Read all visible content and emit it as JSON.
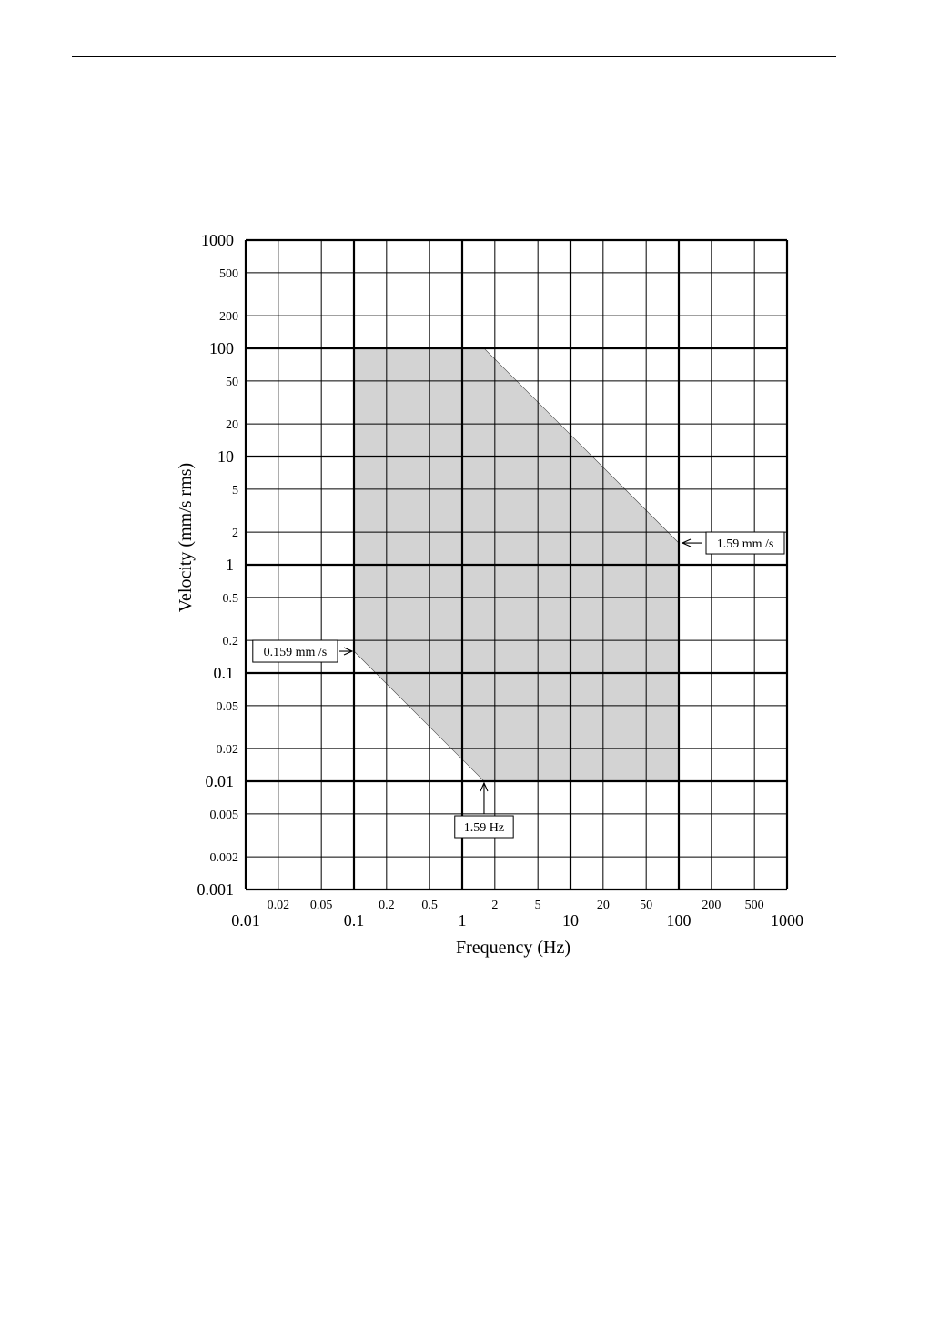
{
  "chart_data": {
    "type": "area",
    "x_scale": "log",
    "y_scale": "log",
    "xlim": [
      0.01,
      1000
    ],
    "ylim": [
      0.001,
      1000
    ],
    "xlabel": "Frequency (Hz)",
    "ylabel": "Velocity (mm/s rms)",
    "grid": true,
    "x_major_ticks": [
      {
        "value": 0.01,
        "label": "0.01"
      },
      {
        "value": 0.1,
        "label": "0.1"
      },
      {
        "value": 1,
        "label": "1"
      },
      {
        "value": 10,
        "label": "10"
      },
      {
        "value": 100,
        "label": "100"
      },
      {
        "value": 1000,
        "label": "1000"
      }
    ],
    "x_minor_ticks": [
      {
        "value": 0.02,
        "label": "0.02"
      },
      {
        "value": 0.05,
        "label": "0.05"
      },
      {
        "value": 0.2,
        "label": "0.2"
      },
      {
        "value": 0.5,
        "label": "0.5"
      },
      {
        "value": 2,
        "label": "2"
      },
      {
        "value": 5,
        "label": "5"
      },
      {
        "value": 20,
        "label": "20"
      },
      {
        "value": 50,
        "label": "50"
      },
      {
        "value": 200,
        "label": "200"
      },
      {
        "value": 500,
        "label": "500"
      }
    ],
    "y_major_ticks": [
      {
        "value": 0.001,
        "label": "0.001"
      },
      {
        "value": 0.01,
        "label": "0.01"
      },
      {
        "value": 0.1,
        "label": "0.1"
      },
      {
        "value": 1,
        "label": "1"
      },
      {
        "value": 10,
        "label": "10"
      },
      {
        "value": 100,
        "label": "100"
      },
      {
        "value": 1000,
        "label": "1000"
      }
    ],
    "y_minor_ticks": [
      {
        "value": 0.002,
        "label": "0.002"
      },
      {
        "value": 0.005,
        "label": "0.005"
      },
      {
        "value": 0.02,
        "label": "0.02"
      },
      {
        "value": 0.05,
        "label": "0.05"
      },
      {
        "value": 0.2,
        "label": "0.2"
      },
      {
        "value": 0.5,
        "label": "0.5"
      },
      {
        "value": 2,
        "label": "2"
      },
      {
        "value": 5,
        "label": "5"
      },
      {
        "value": 20,
        "label": "20"
      },
      {
        "value": 50,
        "label": "50"
      },
      {
        "value": 200,
        "label": "200"
      },
      {
        "value": 500,
        "label": "500"
      }
    ],
    "region": {
      "fill": "#d3d3d3",
      "vertices": [
        [
          0.1,
          100
        ],
        [
          1.59,
          100
        ],
        [
          100,
          1.59
        ],
        [
          100,
          0.01
        ],
        [
          1.59,
          0.01
        ],
        [
          0.1,
          0.159
        ]
      ]
    },
    "annotations": [
      {
        "text": "1.59 mm /s",
        "x": 100,
        "y": 1.59,
        "side": "right"
      },
      {
        "text": "0.159 mm /s",
        "x": 0.1,
        "y": 0.159,
        "side": "left"
      },
      {
        "text": "1.59 Hz",
        "x": 1.59,
        "y": 0.01,
        "side": "below"
      }
    ]
  }
}
